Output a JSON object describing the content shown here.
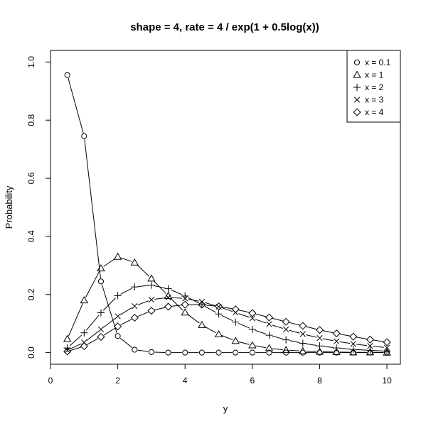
{
  "chart_data": {
    "type": "line",
    "title": "shape = 4, rate = 4 / exp(1 + 0.5log(x))",
    "xlabel": "y",
    "ylabel": "Probability",
    "xlim": [
      0,
      10.4
    ],
    "ylim": [
      -0.04,
      1.04
    ],
    "x_ticks": [
      0,
      2,
      4,
      6,
      8,
      10
    ],
    "y_ticks": [
      0.0,
      0.2,
      0.4,
      0.6,
      0.8,
      1.0
    ],
    "x_tick_labels": [
      "0",
      "2",
      "4",
      "6",
      "8",
      "10"
    ],
    "y_tick_labels": [
      "0.0",
      "0.2",
      "0.4",
      "0.6",
      "0.8",
      "1.0"
    ],
    "grid": false,
    "legend_position": "top-right",
    "x": [
      0.5,
      1,
      1.5,
      2,
      2.5,
      3,
      3.5,
      4,
      4.5,
      5,
      5.5,
      6,
      6.5,
      7,
      7.5,
      8,
      8.5,
      9,
      9.5,
      10
    ],
    "series": [
      {
        "name": "x = 0.1",
        "marker": "circle",
        "values": [
          0.955,
          0.745,
          0.245,
          0.057,
          0.01,
          0.002,
          0.0,
          0.0,
          0.0,
          0.0,
          0.0,
          0.0,
          0.0,
          0.0,
          0.0,
          0.0,
          0.0,
          0.0,
          0.0,
          0.0
        ]
      },
      {
        "name": "x = 1",
        "marker": "triangle",
        "values": [
          0.047,
          0.18,
          0.29,
          0.33,
          0.31,
          0.255,
          0.195,
          0.138,
          0.095,
          0.063,
          0.04,
          0.025,
          0.015,
          0.009,
          0.005,
          0.003,
          0.002,
          0.001,
          0.001,
          0.0
        ]
      },
      {
        "name": "x = 2",
        "marker": "plus",
        "values": [
          0.016,
          0.068,
          0.137,
          0.196,
          0.226,
          0.232,
          0.22,
          0.195,
          0.165,
          0.133,
          0.105,
          0.08,
          0.06,
          0.044,
          0.032,
          0.023,
          0.016,
          0.011,
          0.008,
          0.005
        ]
      },
      {
        "name": "x = 3",
        "marker": "cross",
        "values": [
          0.008,
          0.035,
          0.08,
          0.125,
          0.16,
          0.182,
          0.19,
          0.186,
          0.175,
          0.158,
          0.138,
          0.118,
          0.098,
          0.08,
          0.064,
          0.05,
          0.039,
          0.03,
          0.023,
          0.017
        ]
      },
      {
        "name": "x = 4",
        "marker": "diamond",
        "values": [
          0.004,
          0.022,
          0.054,
          0.09,
          0.12,
          0.144,
          0.158,
          0.165,
          0.165,
          0.159,
          0.149,
          0.136,
          0.121,
          0.106,
          0.092,
          0.078,
          0.066,
          0.055,
          0.045,
          0.036
        ]
      }
    ]
  }
}
